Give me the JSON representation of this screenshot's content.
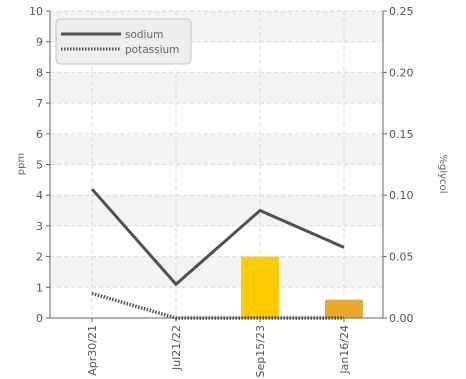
{
  "chart_data": {
    "type": "line",
    "categories": [
      "Apr30/21",
      "Jul21/22",
      "Sep15/23",
      "Jan16/24"
    ],
    "series": [
      {
        "name": "sodium",
        "axis": "left",
        "style": "solid",
        "color": "#505050",
        "values": [
          4.2,
          1.1,
          3.5,
          2.3
        ]
      },
      {
        "name": "potassium",
        "axis": "left",
        "style": "dotted",
        "color": "#505050",
        "values": [
          0.8,
          0.0,
          0.0,
          0.0
        ]
      }
    ],
    "bars": [
      {
        "category": "Sep15/23",
        "value": 0.05,
        "axis": "right",
        "color": "#ffcc00"
      },
      {
        "category": "Jan16/24",
        "value": 0.015,
        "axis": "right",
        "color": "#e8a92c"
      }
    ],
    "ylabel": "ppm",
    "y2label": "%glycol",
    "ylim": [
      0,
      10
    ],
    "y2lim": [
      0,
      0.25
    ],
    "yticks": [
      "0",
      "1",
      "2",
      "3",
      "4",
      "5",
      "6",
      "7",
      "8",
      "9",
      "10"
    ],
    "y2ticks": [
      "0.00",
      "0.05",
      "0.10",
      "0.15",
      "0.20",
      "0.25"
    ],
    "grid": true,
    "legend_position": "top-left"
  }
}
